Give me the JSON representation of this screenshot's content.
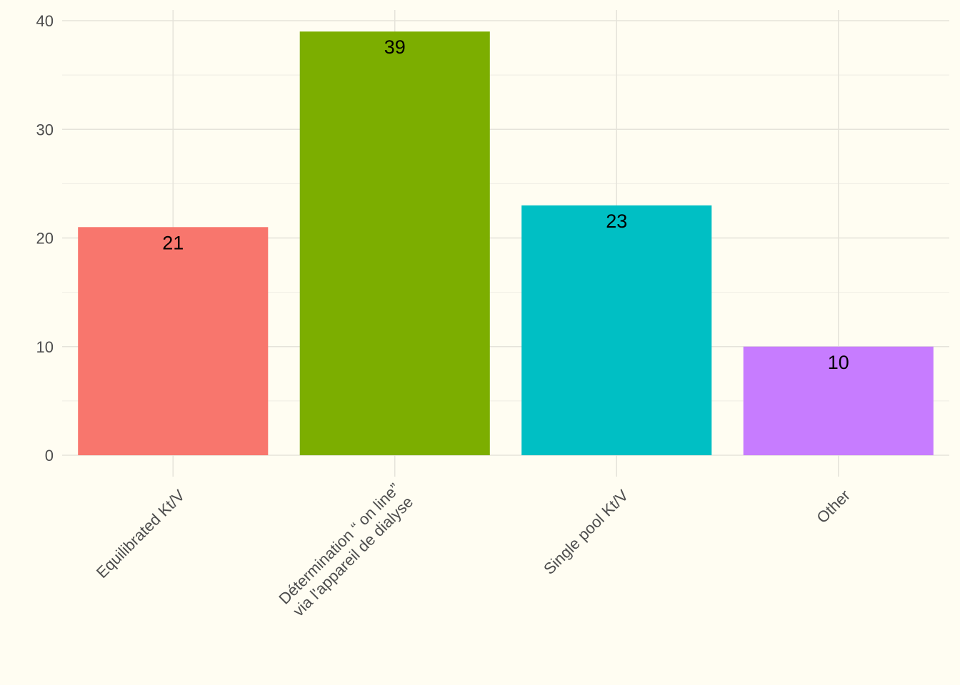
{
  "chart_data": {
    "type": "bar",
    "title": "",
    "xlabel": "",
    "ylabel": "",
    "categories": [
      "Equilibrated Kt/V",
      [
        "Détermination  “ on line”",
        "via l'appareil de dialyse"
      ],
      "Single pool Kt/V",
      "Other"
    ],
    "values": [
      21,
      39,
      23,
      10
    ],
    "data_labels": [
      "21",
      "39",
      "23",
      "10"
    ],
    "colors": [
      "#F8766D",
      "#7CAE00",
      "#00BFC4",
      "#C77CFF"
    ],
    "ylim": [
      0,
      40
    ],
    "yticks": [
      0,
      10,
      20,
      30,
      40
    ],
    "ytick_labels": [
      "0",
      "10",
      "20",
      "30",
      "40"
    ],
    "grid": true,
    "legend": "none",
    "background": "#FFFDF2"
  }
}
